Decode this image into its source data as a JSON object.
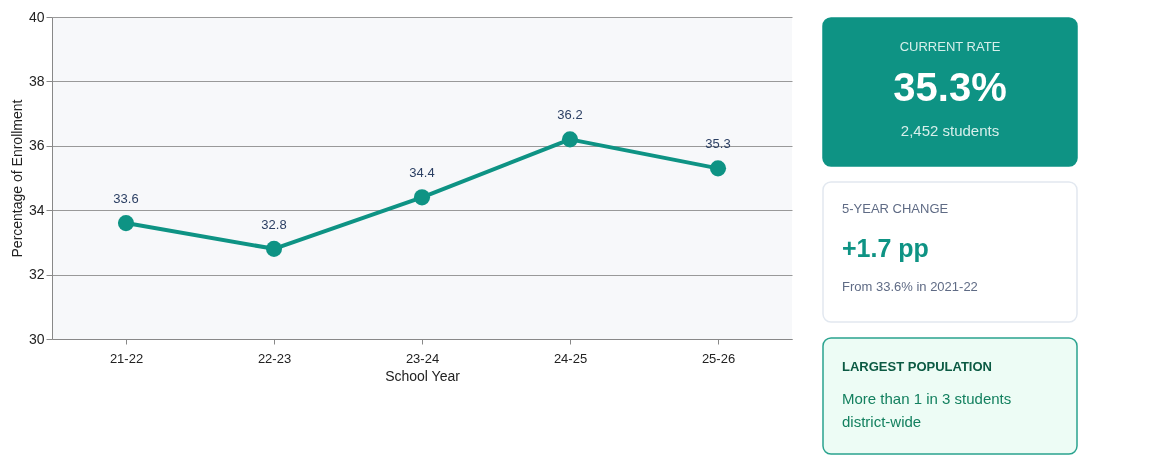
{
  "chart_data": [
    {
      "type": "line",
      "xlabel": "School Year",
      "ylabel": "Percentage of Enrollment",
      "categories": [
        "21-22",
        "22-23",
        "23-24",
        "24-25",
        "25-26"
      ],
      "series": [
        {
          "color": "#0e9384",
          "values": [
            33.6,
            32.8,
            34.4,
            36.2,
            35.3
          ]
        }
      ],
      "ylim": [
        30,
        40
      ],
      "yticks": [
        30,
        32,
        34,
        36,
        38,
        40
      ],
      "grid": "y",
      "marker": "circle",
      "line_style": "solid",
      "data_labels": true
    },
    {
      "type": "other",
      "annotations": [
        "CURRENT RATE",
        "35.3%",
        "2,452 students"
      ]
    },
    {
      "type": "other",
      "annotations": [
        "5-YEAR CHANGE",
        "+1.7 pp",
        "From 33.6% in 2021-22"
      ]
    },
    {
      "type": "other",
      "annotations": [
        "LARGEST POPULATION",
        "More than 1 in 3 students district-wide"
      ]
    }
  ]
}
